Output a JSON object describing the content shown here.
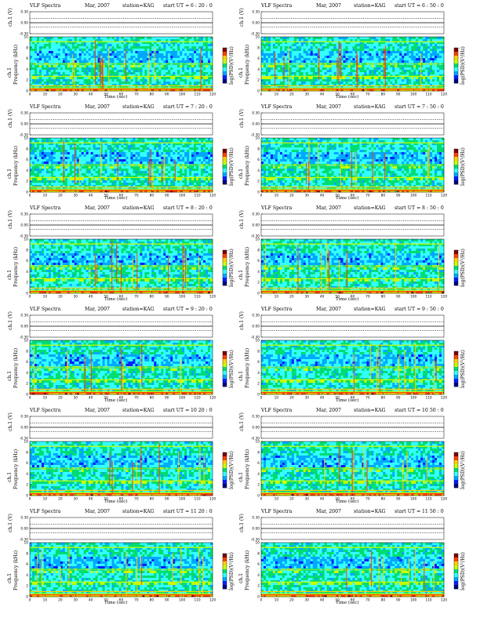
{
  "chart_data": {
    "type": "heatmap",
    "panel_title": "VLF Spectra",
    "date": "Mar, 2007",
    "station": "station=KAG",
    "start_prefix": "start UT =",
    "xlabel": "Time (sec)",
    "ylabel_top": "ch.1 (V)",
    "ylabel_spec_channel": "ch.1",
    "ylabel_spec": "Frequency (kHz)",
    "colorbar_label": "log(PSD)(V²/Hz)",
    "xlim": [
      0,
      120
    ],
    "x_ticks": [
      0,
      10,
      20,
      30,
      40,
      50,
      60,
      70,
      80,
      90,
      100,
      110,
      120
    ],
    "ylim_kHz": [
      0,
      10
    ],
    "y_ticks_kHz": [
      0,
      2,
      4,
      6,
      8,
      10
    ],
    "top_ylim_V": [
      -0.3,
      0.3
    ],
    "top_ticks": [
      "0.30",
      "0.00",
      "-0.30"
    ],
    "colorbar_ticks": [
      "-",
      "-"
    ],
    "colormap": [
      "#00007f",
      "#0020ff",
      "#00a8ff",
      "#33ffff",
      "#00dd70",
      "#c8ff00",
      "#ffd000",
      "#ff4000",
      "#7f0000"
    ],
    "panels": [
      {
        "start_ut": "6 : 20 : 0"
      },
      {
        "start_ut": "6 : 50 : 0"
      },
      {
        "start_ut": "7 : 20 : 0"
      },
      {
        "start_ut": "7 : 50 : 0"
      },
      {
        "start_ut": "8 : 20 : 0"
      },
      {
        "start_ut": "8 : 50 : 0"
      },
      {
        "start_ut": "9 : 20 : 0"
      },
      {
        "start_ut": "9 : 50 : 0"
      },
      {
        "start_ut": "10 20 : 0"
      },
      {
        "start_ut": "10 50 : 0"
      },
      {
        "start_ut": "11 20 : 0"
      },
      {
        "start_ut": "11 50 : 0"
      }
    ]
  }
}
